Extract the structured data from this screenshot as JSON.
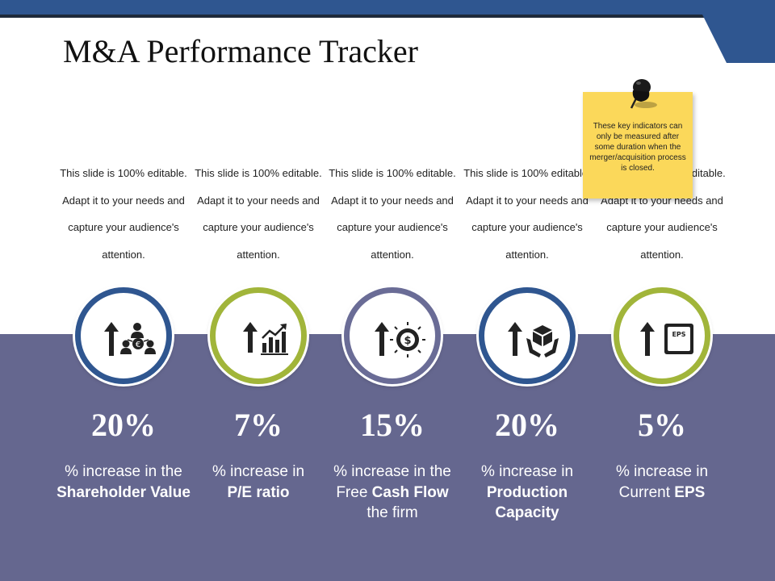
{
  "title": "M&A Performance Tracker",
  "note": "These key indicators can only be measured after some duration when the merger/acquisition process is closed.",
  "colors": {
    "navy": "#2f5690",
    "green": "#a1b53a",
    "slate": "#6a6c96",
    "band": "#65678f",
    "note": "#fbd85a"
  },
  "metrics": [
    {
      "description": "This slide is 100% editable. Adapt it to your needs and capture your audience's attention.",
      "value": "20%",
      "label_pre": "% increase in the",
      "label_bold": "Shareholder Value",
      "label_post": "",
      "icon": "shareholders-euro-icon",
      "ring": "navy"
    },
    {
      "description": "This slide is 100% editable. Adapt it to your needs and capture your audience's attention.",
      "value": "7%",
      "label_pre": "% increase in",
      "label_bold": "P/E ratio",
      "label_post": "",
      "icon": "bar-chart-growth-icon",
      "ring": "green"
    },
    {
      "description": "This slide is 100% editable. Adapt it to your needs and capture your audience's attention.",
      "value": "15%",
      "label_pre": "% increase in the Free",
      "label_bold": "Cash Flow",
      "label_post": "the firm",
      "icon": "dollar-gear-icon",
      "ring": "slate"
    },
    {
      "description": "This slide is 100% editable. Adapt it to your needs and capture your audience's attention.",
      "value": "20%",
      "label_pre": "% increase in",
      "label_bold": "Production Capacity",
      "label_post": "",
      "icon": "hands-box-icon",
      "ring": "navy"
    },
    {
      "description": "This slide is 100% editable. Adapt it to your needs and capture your audience's attention.",
      "value": "5%",
      "label_pre": "% increase in Current",
      "label_bold": "EPS",
      "label_post": "",
      "icon": "eps-document-icon",
      "ring": "green",
      "eps_text": "EPS"
    }
  ]
}
